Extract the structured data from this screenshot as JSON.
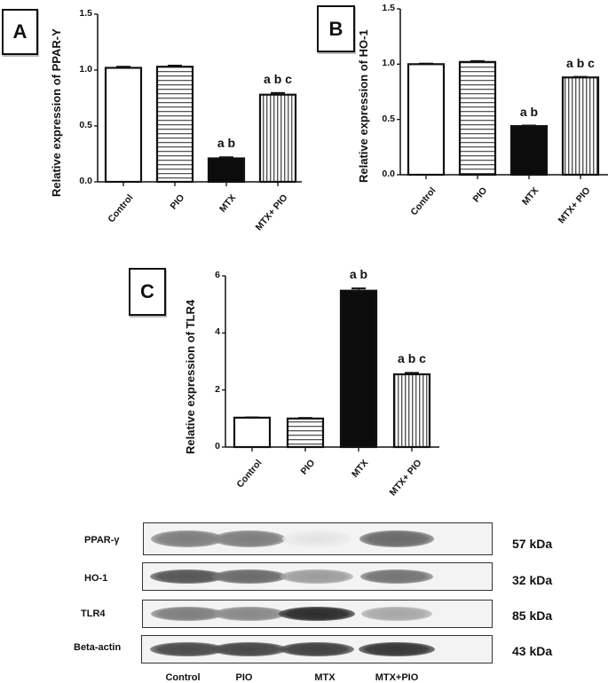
{
  "panels": {
    "A": {
      "label": "A"
    },
    "B": {
      "label": "B"
    },
    "C": {
      "label": "C"
    }
  },
  "chart_data": [
    {
      "type": "bar",
      "panel": "A",
      "title": "",
      "xlabel": "",
      "ylabel": "Relative expression of PPAR-Y",
      "categories": [
        "Control",
        "PIO",
        "MTX",
        "MTX+ PIO"
      ],
      "values": [
        1.02,
        1.03,
        0.21,
        0.78
      ],
      "errors": [
        0.01,
        0.01,
        0.01,
        0.015
      ],
      "annotations": [
        "",
        "",
        "a b",
        "a b c"
      ],
      "yticks": [
        "0.0",
        "0.5",
        "1.0",
        "1.5"
      ],
      "ylim": [
        0,
        1.5
      ],
      "fills": [
        "white",
        "horizontal-stripes",
        "black",
        "vertical-stripes"
      ],
      "grid": false,
      "legend": "none"
    },
    {
      "type": "bar",
      "panel": "B",
      "title": "",
      "xlabel": "",
      "ylabel": "Relative expression of HO-1",
      "categories": [
        "Control",
        "PIO",
        "MTX",
        "MTX+ PIO"
      ],
      "values": [
        1.0,
        1.02,
        0.44,
        0.88
      ],
      "errors": [
        0.005,
        0.008,
        0.005,
        0.005
      ],
      "annotations": [
        "",
        "",
        "a b",
        "a b c"
      ],
      "yticks": [
        "0.0",
        "0.5",
        "1.0",
        "1.5"
      ],
      "ylim": [
        0,
        1.5
      ],
      "fills": [
        "white",
        "horizontal-stripes",
        "black",
        "vertical-stripes"
      ],
      "grid": false,
      "legend": "none"
    },
    {
      "type": "bar",
      "panel": "C",
      "title": "",
      "xlabel": "",
      "ylabel": "Relative expression of TLR4",
      "categories": [
        "Control",
        "PIO",
        "MTX",
        "MTX+ PIO"
      ],
      "values": [
        1.03,
        1.0,
        5.48,
        2.55
      ],
      "errors": [
        0.01,
        0.02,
        0.08,
        0.05
      ],
      "annotations": [
        "",
        "",
        "a b",
        "a b c"
      ],
      "yticks": [
        "0",
        "2",
        "4",
        "6"
      ],
      "ylim": [
        0,
        6
      ],
      "fills": [
        "white",
        "horizontal-stripes",
        "black",
        "vertical-stripes"
      ],
      "grid": false,
      "legend": "none"
    }
  ],
  "western_blot": {
    "rows": [
      {
        "protein": "PPAR-γ",
        "size": "57 kDa",
        "intensity": [
          0.55,
          0.55,
          0.05,
          0.65
        ]
      },
      {
        "protein": "HO-1",
        "size": "32 kDa",
        "intensity": [
          0.75,
          0.65,
          0.4,
          0.6
        ]
      },
      {
        "protein": "TLR4",
        "size": "85 kDa",
        "intensity": [
          0.55,
          0.5,
          0.95,
          0.35
        ]
      },
      {
        "protein": "Beta-actin",
        "size": "43 kDa",
        "intensity": [
          0.8,
          0.82,
          0.85,
          0.9
        ]
      }
    ],
    "lanes": [
      "Control",
      "PIO",
      "MTX",
      "MTX+PIO"
    ]
  }
}
